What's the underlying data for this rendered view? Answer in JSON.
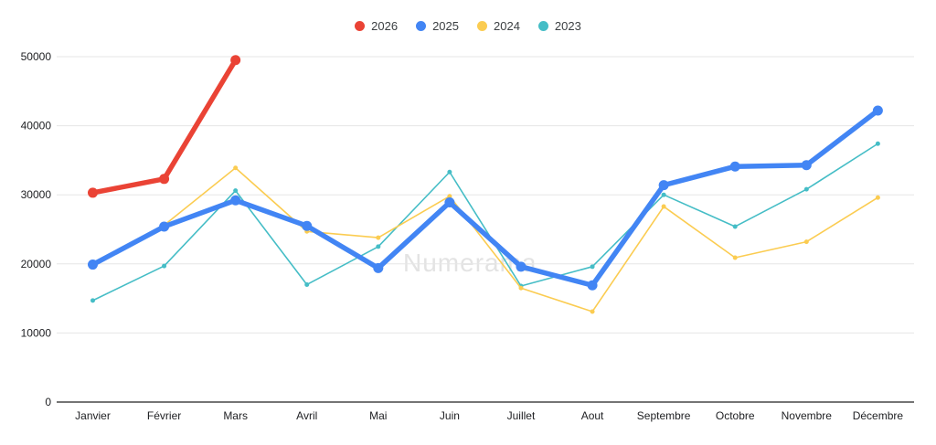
{
  "watermark": "Numerama",
  "legend": {
    "items": [
      {
        "label": "2026",
        "color": "#ea4335"
      },
      {
        "label": "2025",
        "color": "#4285f4"
      },
      {
        "label": "2024",
        "color": "#fbcc51"
      },
      {
        "label": "2023",
        "color": "#45bdc6"
      }
    ]
  },
  "chart_data": {
    "type": "line",
    "title": "",
    "xlabel": "",
    "ylabel": "",
    "categories": [
      "Janvier",
      "Février",
      "Mars",
      "Avril",
      "Mai",
      "Juin",
      "Juillet",
      "Aout",
      "Septembre",
      "Octobre",
      "Novembre",
      "Décembre"
    ],
    "series": [
      {
        "name": "2023",
        "color": "#45bdc6",
        "thick": false,
        "values": [
          14700,
          19700,
          30600,
          17000,
          22500,
          33300,
          16800,
          19600,
          30000,
          25400,
          30800,
          37400
        ]
      },
      {
        "name": "2024",
        "color": "#fbcc51",
        "thick": false,
        "values": [
          19800,
          25600,
          33900,
          24700,
          23800,
          29800,
          16500,
          13100,
          28300,
          20900,
          23200,
          29600
        ]
      },
      {
        "name": "2025",
        "color": "#4285f4",
        "thick": true,
        "values": [
          19900,
          25400,
          29200,
          25500,
          19400,
          28900,
          19600,
          16900,
          31400,
          34100,
          34300,
          42200
        ]
      },
      {
        "name": "2026",
        "color": "#ea4335",
        "thick": true,
        "values": [
          30300,
          32300,
          49500,
          null,
          null,
          null,
          null,
          null,
          null,
          null,
          null,
          null
        ]
      }
    ],
    "ylim": [
      0,
      50000
    ],
    "yticks": [
      0,
      10000,
      20000,
      30000,
      40000,
      50000
    ],
    "grid": true,
    "legend_position": "top-center",
    "colors": {
      "grid": "#e6e6e6",
      "axis": "#757575",
      "tick_text": "#202124",
      "legend_text": "#3c4043",
      "watermark_text": "#e3e3e3"
    }
  }
}
